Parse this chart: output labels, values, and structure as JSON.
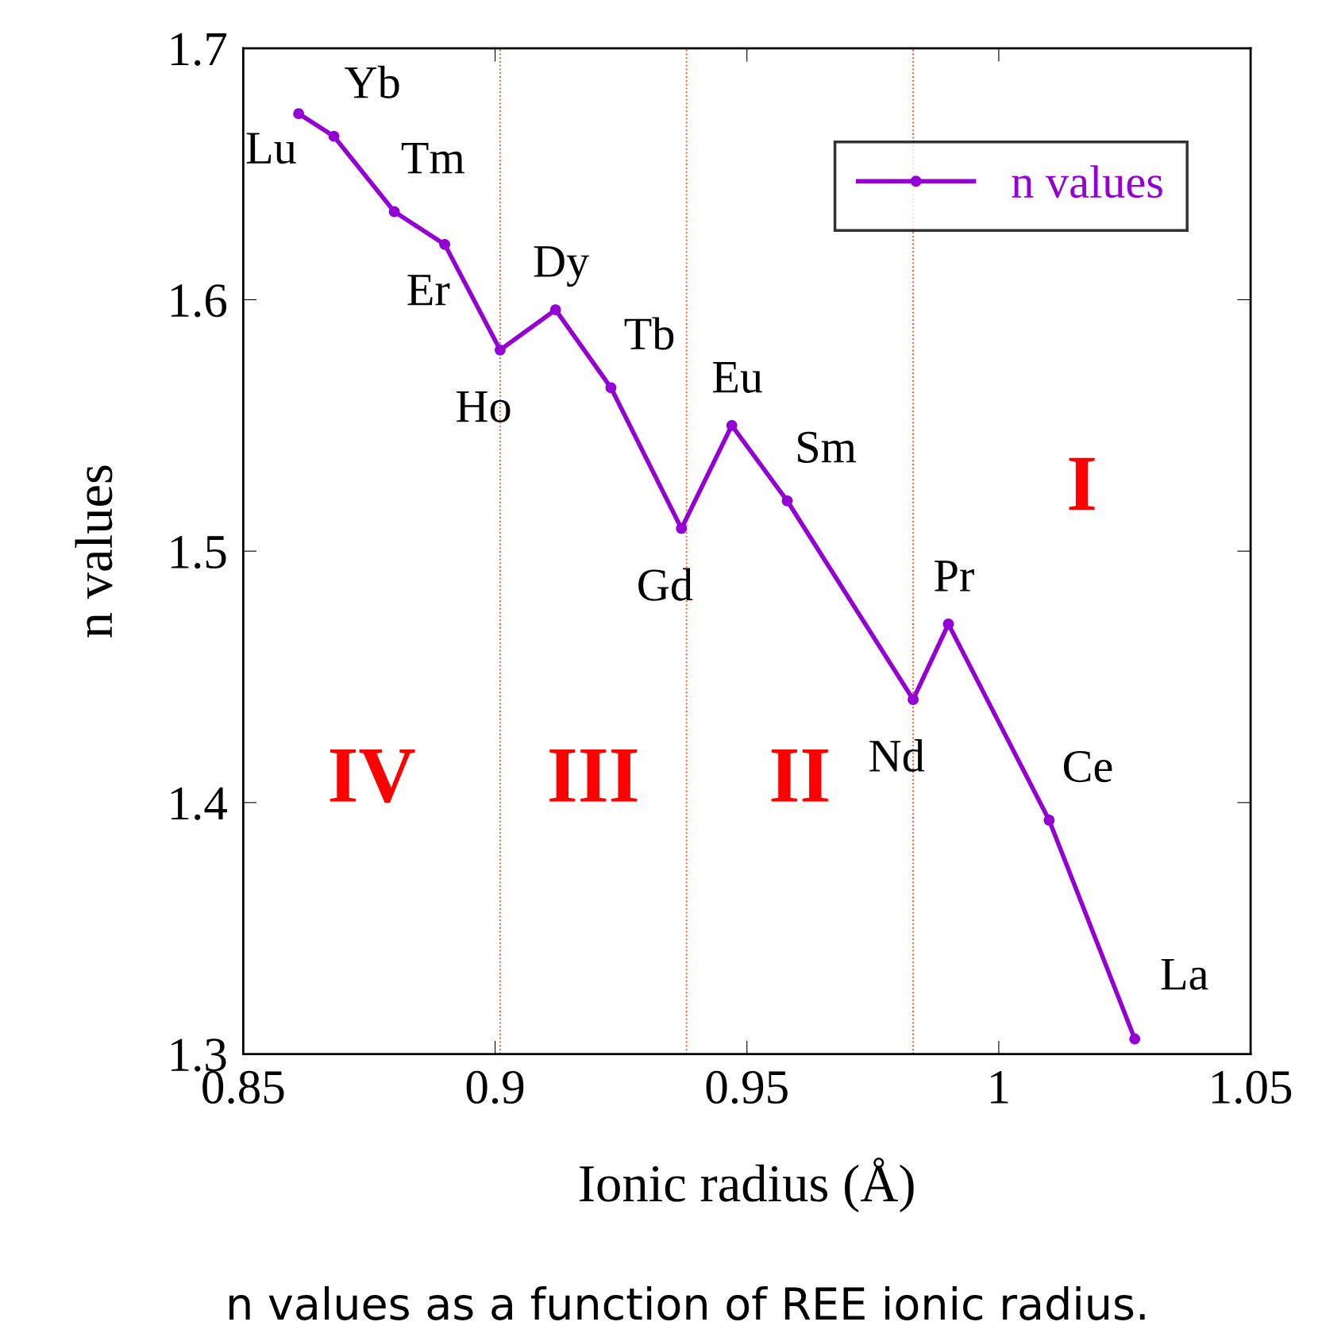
{
  "chart_data": {
    "type": "line",
    "xlabel": "Ionic radius (Å)",
    "ylabel": "n values",
    "xlim": [
      0.85,
      1.05
    ],
    "xticks": [
      0.85,
      0.9,
      0.95,
      1,
      1.05
    ],
    "ylim": [
      1.3,
      1.7
    ],
    "yticks": [
      1.3,
      1.4,
      1.5,
      1.6,
      1.7
    ],
    "x": [
      0.861,
      0.868,
      0.88,
      0.89,
      0.901,
      0.912,
      0.923,
      0.937,
      0.947,
      0.958,
      0.983,
      0.99,
      1.01,
      1.027
    ],
    "series": [
      {
        "name": "n values",
        "color": "#9400d3",
        "values": [
          1.674,
          1.665,
          1.635,
          1.622,
          1.58,
          1.596,
          1.565,
          1.509,
          1.55,
          1.52,
          1.441,
          1.471,
          1.393,
          1.306
        ],
        "value_labels": [
          "Lu",
          "Yb",
          "Tm",
          "Er",
          "Ho",
          "Dy",
          "Tb",
          "Gd",
          "Eu",
          "Sm",
          "Nd",
          "Pr",
          "Ce",
          "La"
        ]
      }
    ],
    "marker": "circle",
    "line_style": "solid",
    "grid": false,
    "legend": "top right",
    "ref_lines": [
      {
        "axis": "x",
        "value": 0.901,
        "color": "#ff4500",
        "line_style": "dotted"
      },
      {
        "axis": "x",
        "value": 0.938,
        "color": "#ff4500",
        "line_style": "dotted"
      },
      {
        "axis": "x",
        "value": 0.983,
        "color": "#ff4500",
        "line_style": "dotted"
      }
    ],
    "annotations": [
      "IV",
      "III",
      "II",
      "I",
      "n values as a function of REE ionic radius."
    ]
  }
}
